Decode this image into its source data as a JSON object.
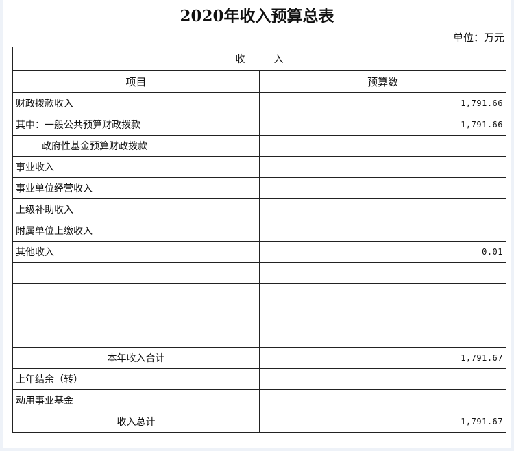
{
  "title": "2020年收入预算总表",
  "unit": "单位：万元",
  "table": {
    "section_header": "收　　　入",
    "col_item": "项目",
    "col_amount": "预算数",
    "rows": [
      {
        "item": "财政拨款收入",
        "amount": "1,791.66",
        "align": "left"
      },
      {
        "item": "其中：一般公共预算财政拨款",
        "amount": "1,791.66",
        "align": "left"
      },
      {
        "item": "政府性基金预算财政拨款",
        "amount": "",
        "align": "indent"
      },
      {
        "item": "事业收入",
        "amount": "",
        "align": "left"
      },
      {
        "item": "事业单位经营收入",
        "amount": "",
        "align": "left"
      },
      {
        "item": "上级补助收入",
        "amount": "",
        "align": "left"
      },
      {
        "item": "附属单位上缴收入",
        "amount": "",
        "align": "left"
      },
      {
        "item": "其他收入",
        "amount": "0.01",
        "align": "left"
      },
      {
        "item": "",
        "amount": "",
        "align": "left"
      },
      {
        "item": "",
        "amount": "",
        "align": "left"
      },
      {
        "item": "",
        "amount": "",
        "align": "left"
      },
      {
        "item": "",
        "amount": "",
        "align": "left"
      },
      {
        "item": "本年收入合计",
        "amount": "1,791.67",
        "align": "center"
      },
      {
        "item": "上年结余（转）",
        "amount": "",
        "align": "left"
      },
      {
        "item": "动用事业基金",
        "amount": "",
        "align": "left"
      },
      {
        "item": "收入总计",
        "amount": "1,791.67",
        "align": "center"
      }
    ]
  }
}
